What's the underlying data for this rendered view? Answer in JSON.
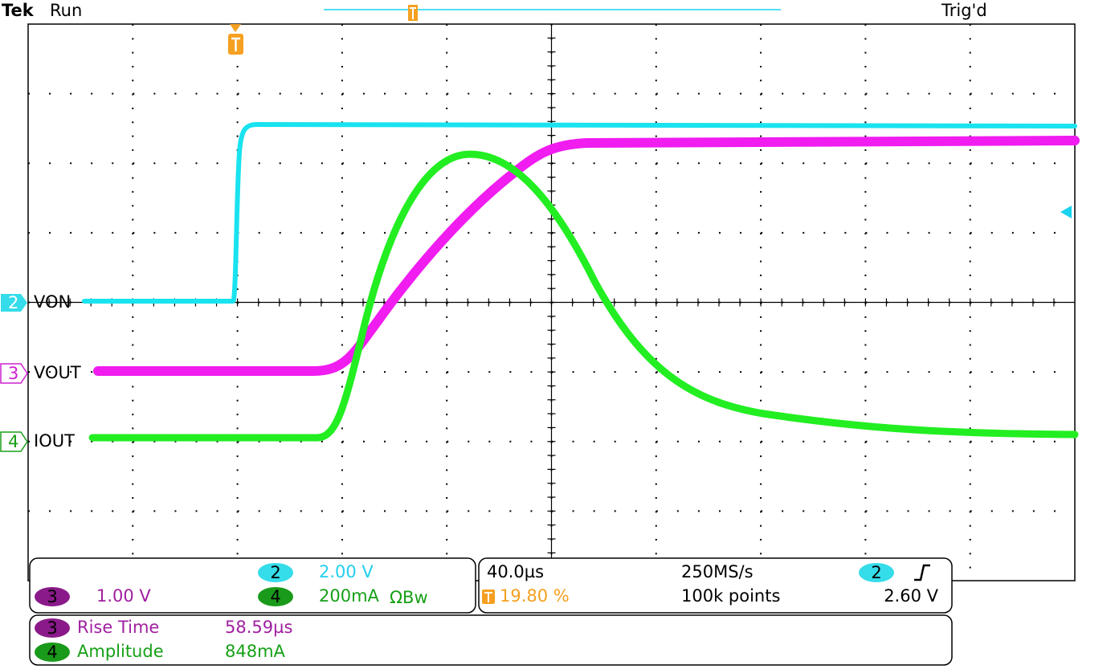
{
  "header": {
    "brand": "Tek",
    "status": "Run",
    "trigger_state": "Trig'd"
  },
  "channels": [
    {
      "number": "2",
      "label": "VON"
    },
    {
      "number": "3",
      "label": "VOUT"
    },
    {
      "number": "4",
      "label": "IOUT"
    }
  ],
  "vertical": [
    {
      "channel": "2",
      "scale": "2.00 V"
    },
    {
      "channel": "3",
      "scale": "1.00 V"
    },
    {
      "channel": "4",
      "scale": "200mA",
      "suffix": "ΩBw"
    }
  ],
  "horizontal": {
    "scale": "40.0µs",
    "sample_rate": "250MS/s",
    "record_length": "100k points",
    "trigger_position": "19.80 %"
  },
  "trigger": {
    "source": "2",
    "level": "2.60 V"
  },
  "measurements": [
    {
      "channel": "3",
      "name": "Rise Time",
      "value": "58.59µs"
    },
    {
      "channel": "4",
      "name": "Amplitude",
      "value": "848mA"
    }
  ]
}
